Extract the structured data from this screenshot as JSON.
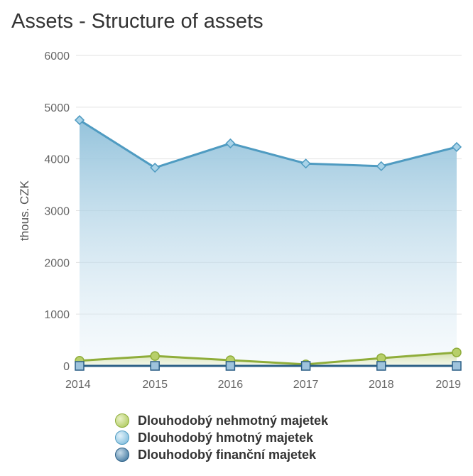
{
  "chart_data": {
    "type": "area",
    "title": "Assets - Structure of assets",
    "ylabel": "thous. CZK",
    "xlabel": "",
    "categories": [
      "2014",
      "2015",
      "2016",
      "2017",
      "2018",
      "2019"
    ],
    "ylim": [
      0,
      6000
    ],
    "yticks": [
      "0",
      "1000",
      "2000",
      "3000",
      "4000",
      "5000",
      "6000"
    ],
    "grid": true,
    "legend_position": "bottom",
    "series": [
      {
        "name": "Dlouhodobý nehmotný majetek",
        "values": [
          100,
          190,
          110,
          30,
          150,
          260
        ],
        "color": "#8fad3a",
        "marker": "circle"
      },
      {
        "name": "Dlouhodobý hmotný majetek",
        "values": [
          4750,
          3830,
          4300,
          3910,
          3860,
          4230
        ],
        "color": "#4f9bc1",
        "marker": "diamond"
      },
      {
        "name": "Dlouhodobý finanční majetek",
        "values": [
          0,
          0,
          0,
          0,
          0,
          0
        ],
        "color": "#2b5f86",
        "marker": "square"
      }
    ]
  }
}
